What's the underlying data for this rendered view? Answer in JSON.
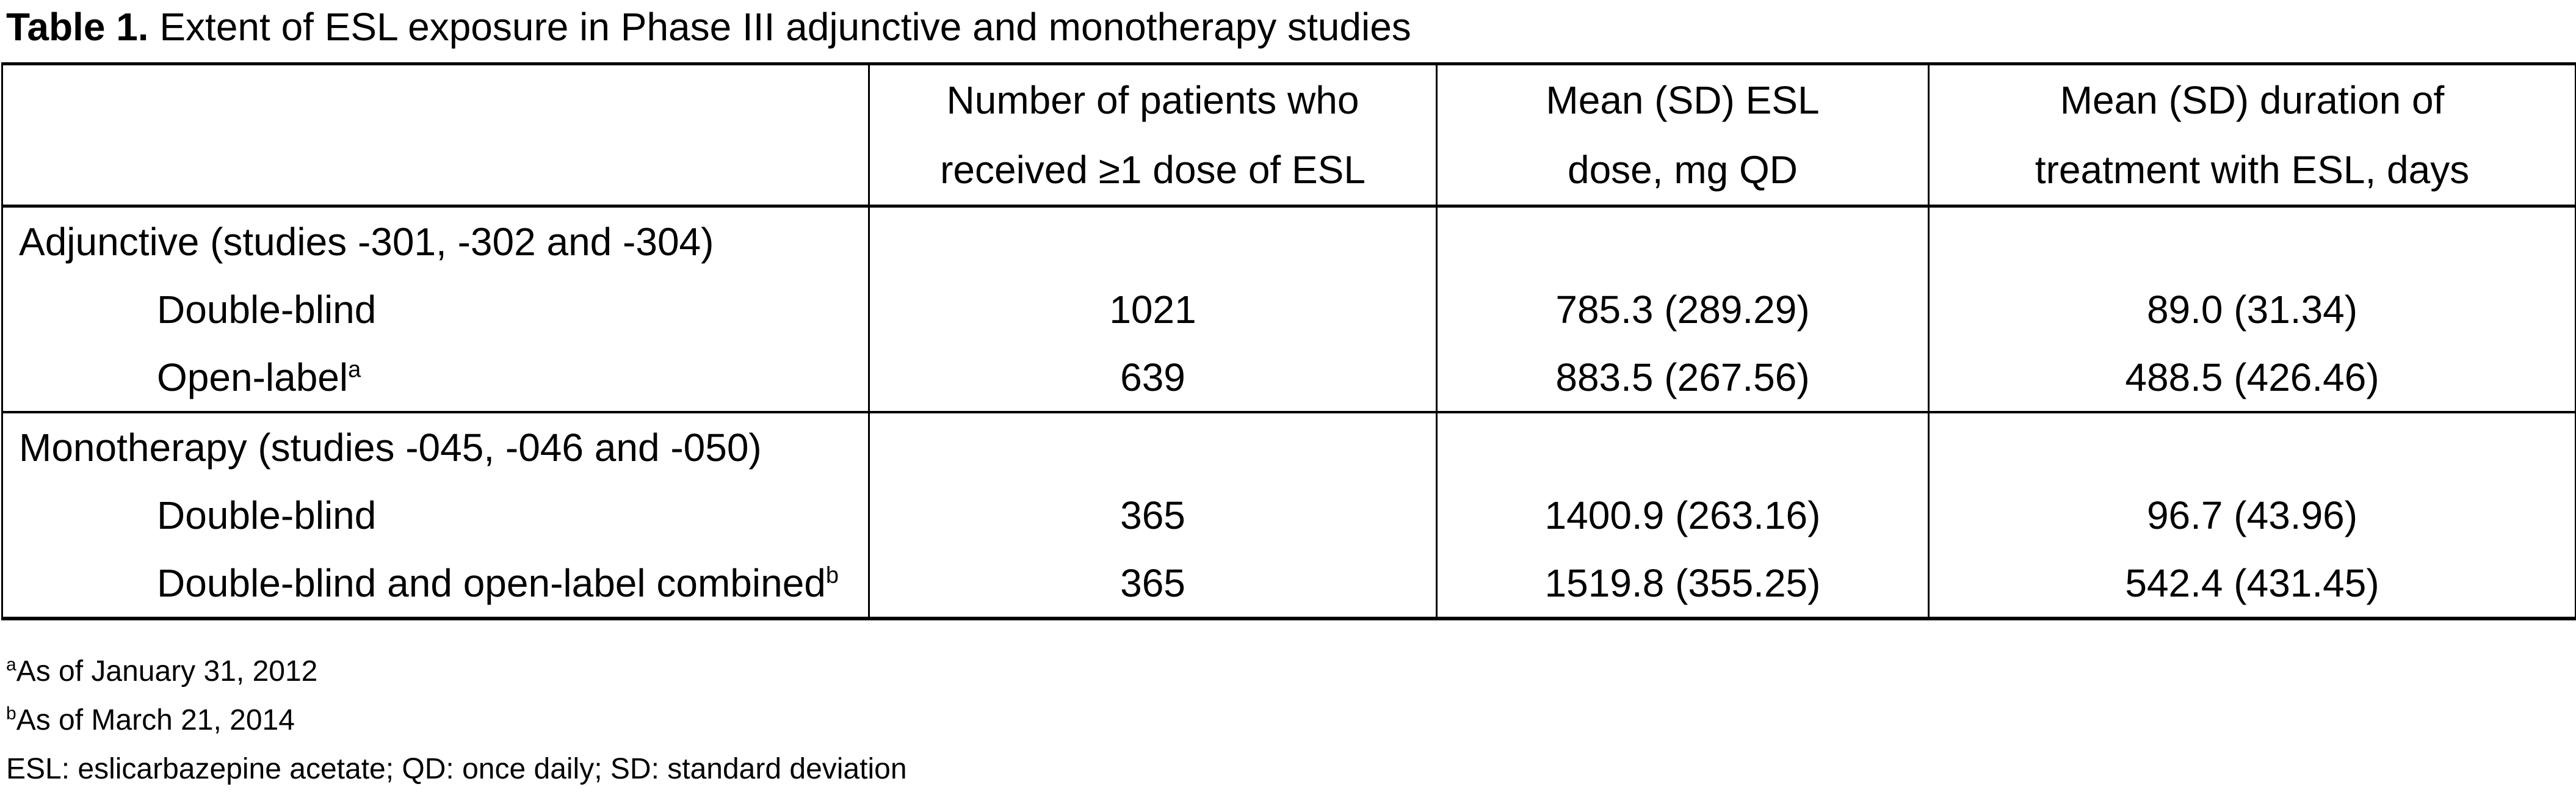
{
  "title": {
    "label_bold": "Table 1.",
    "label_rest": " Extent of ESL exposure in Phase III adjunctive and monotherapy studies"
  },
  "table": {
    "header": {
      "row_label_col": "",
      "col_patients": {
        "line1": "Number of patients who",
        "line2": "received ≥1 dose of ESL"
      },
      "col_dose": {
        "line1": "Mean (SD) ESL",
        "line2": "dose, mg QD"
      },
      "col_duration": {
        "line1": "Mean (SD) duration of",
        "line2": "treatment with ESL, days"
      }
    },
    "rows": [
      {
        "type": "section",
        "label": "Adjunctive (studies -301, -302 and -304)",
        "sup": "",
        "n": "",
        "dose": "",
        "duration": ""
      },
      {
        "type": "data",
        "label": "Double-blind",
        "sup": "",
        "n": "1021",
        "dose": "785.3 (289.29)",
        "duration": "89.0 (31.34)"
      },
      {
        "type": "data",
        "label": "Open-label",
        "sup": "a",
        "n": "639",
        "dose": "883.5 (267.56)",
        "duration": "488.5 (426.46)"
      },
      {
        "type": "section",
        "label": "Monotherapy (studies -045, -046 and -050)",
        "sup": "",
        "n": "",
        "dose": "",
        "duration": ""
      },
      {
        "type": "data",
        "label": "Double-blind",
        "sup": "",
        "n": "365",
        "dose": "1400.9 (263.16)",
        "duration": "96.7 (43.96)"
      },
      {
        "type": "data",
        "label": "Double-blind and open-label combined",
        "sup": "b",
        "n": "365",
        "dose": "1519.8 (355.25)",
        "duration": "542.4 (431.45)"
      }
    ]
  },
  "footnotes": [
    {
      "sup": "a",
      "text": "As of January 31, 2012"
    },
    {
      "sup": "b",
      "text": "As of March 21, 2014"
    },
    {
      "sup": "",
      "text": "ESL: eslicarbazepine acetate; QD: once daily; SD: standard deviation"
    }
  ],
  "colors": {
    "text": "#000000",
    "background": "#ffffff",
    "border": "#000000"
  }
}
